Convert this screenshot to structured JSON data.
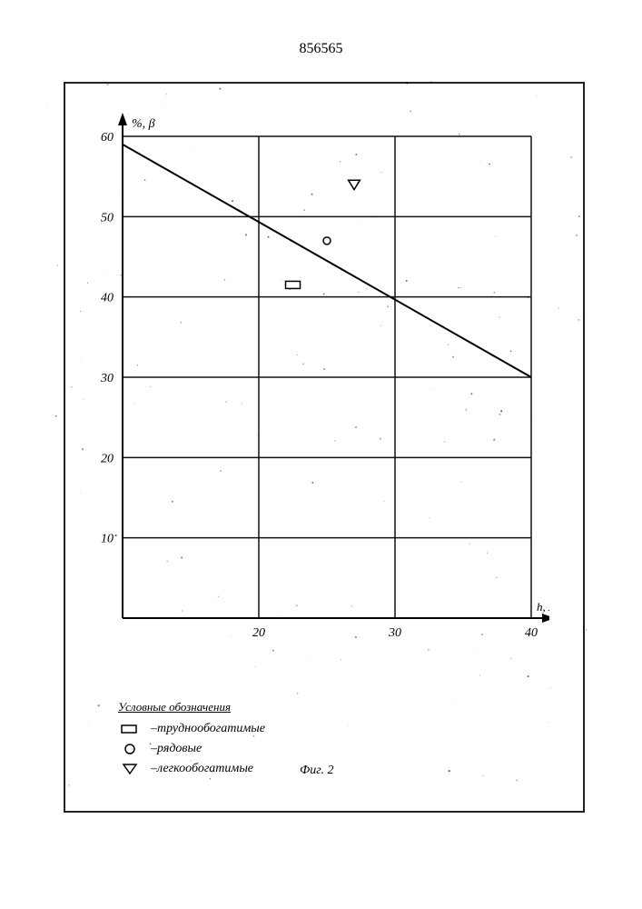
{
  "doc_number": "856565",
  "chart": {
    "type": "line+scatter",
    "xlim": [
      10,
      40
    ],
    "ylim": [
      0,
      60
    ],
    "x_ticks": [
      20,
      30,
      40
    ],
    "y_ticks": [
      10,
      20,
      30,
      40,
      50,
      60
    ],
    "y_axis_label": "%, β",
    "x_axis_label": "h, мм",
    "axis_color": "#000000",
    "grid_color": "#111111",
    "grid_width": 1.5,
    "axis_width": 2,
    "background_color": "#ffffff",
    "line": {
      "points": [
        [
          10,
          59
        ],
        [
          40,
          30
        ]
      ],
      "color": "#000000",
      "width": 2
    },
    "markers": [
      {
        "kind": "rect",
        "x": 22.5,
        "y": 41.5,
        "color": "#000000"
      },
      {
        "kind": "circle",
        "x": 25,
        "y": 47,
        "color": "#000000"
      },
      {
        "kind": "triangle",
        "x": 27,
        "y": 54,
        "color": "#000000"
      }
    ],
    "marker_size": 8
  },
  "legend": {
    "title": "Условные обозначения",
    "items": [
      {
        "kind": "rect",
        "label": "труднообогатимые"
      },
      {
        "kind": "circle",
        "label": "рядовые"
      },
      {
        "kind": "triangle",
        "label": "легкообогатимые"
      }
    ]
  },
  "figure_caption": "Фиг. 2"
}
